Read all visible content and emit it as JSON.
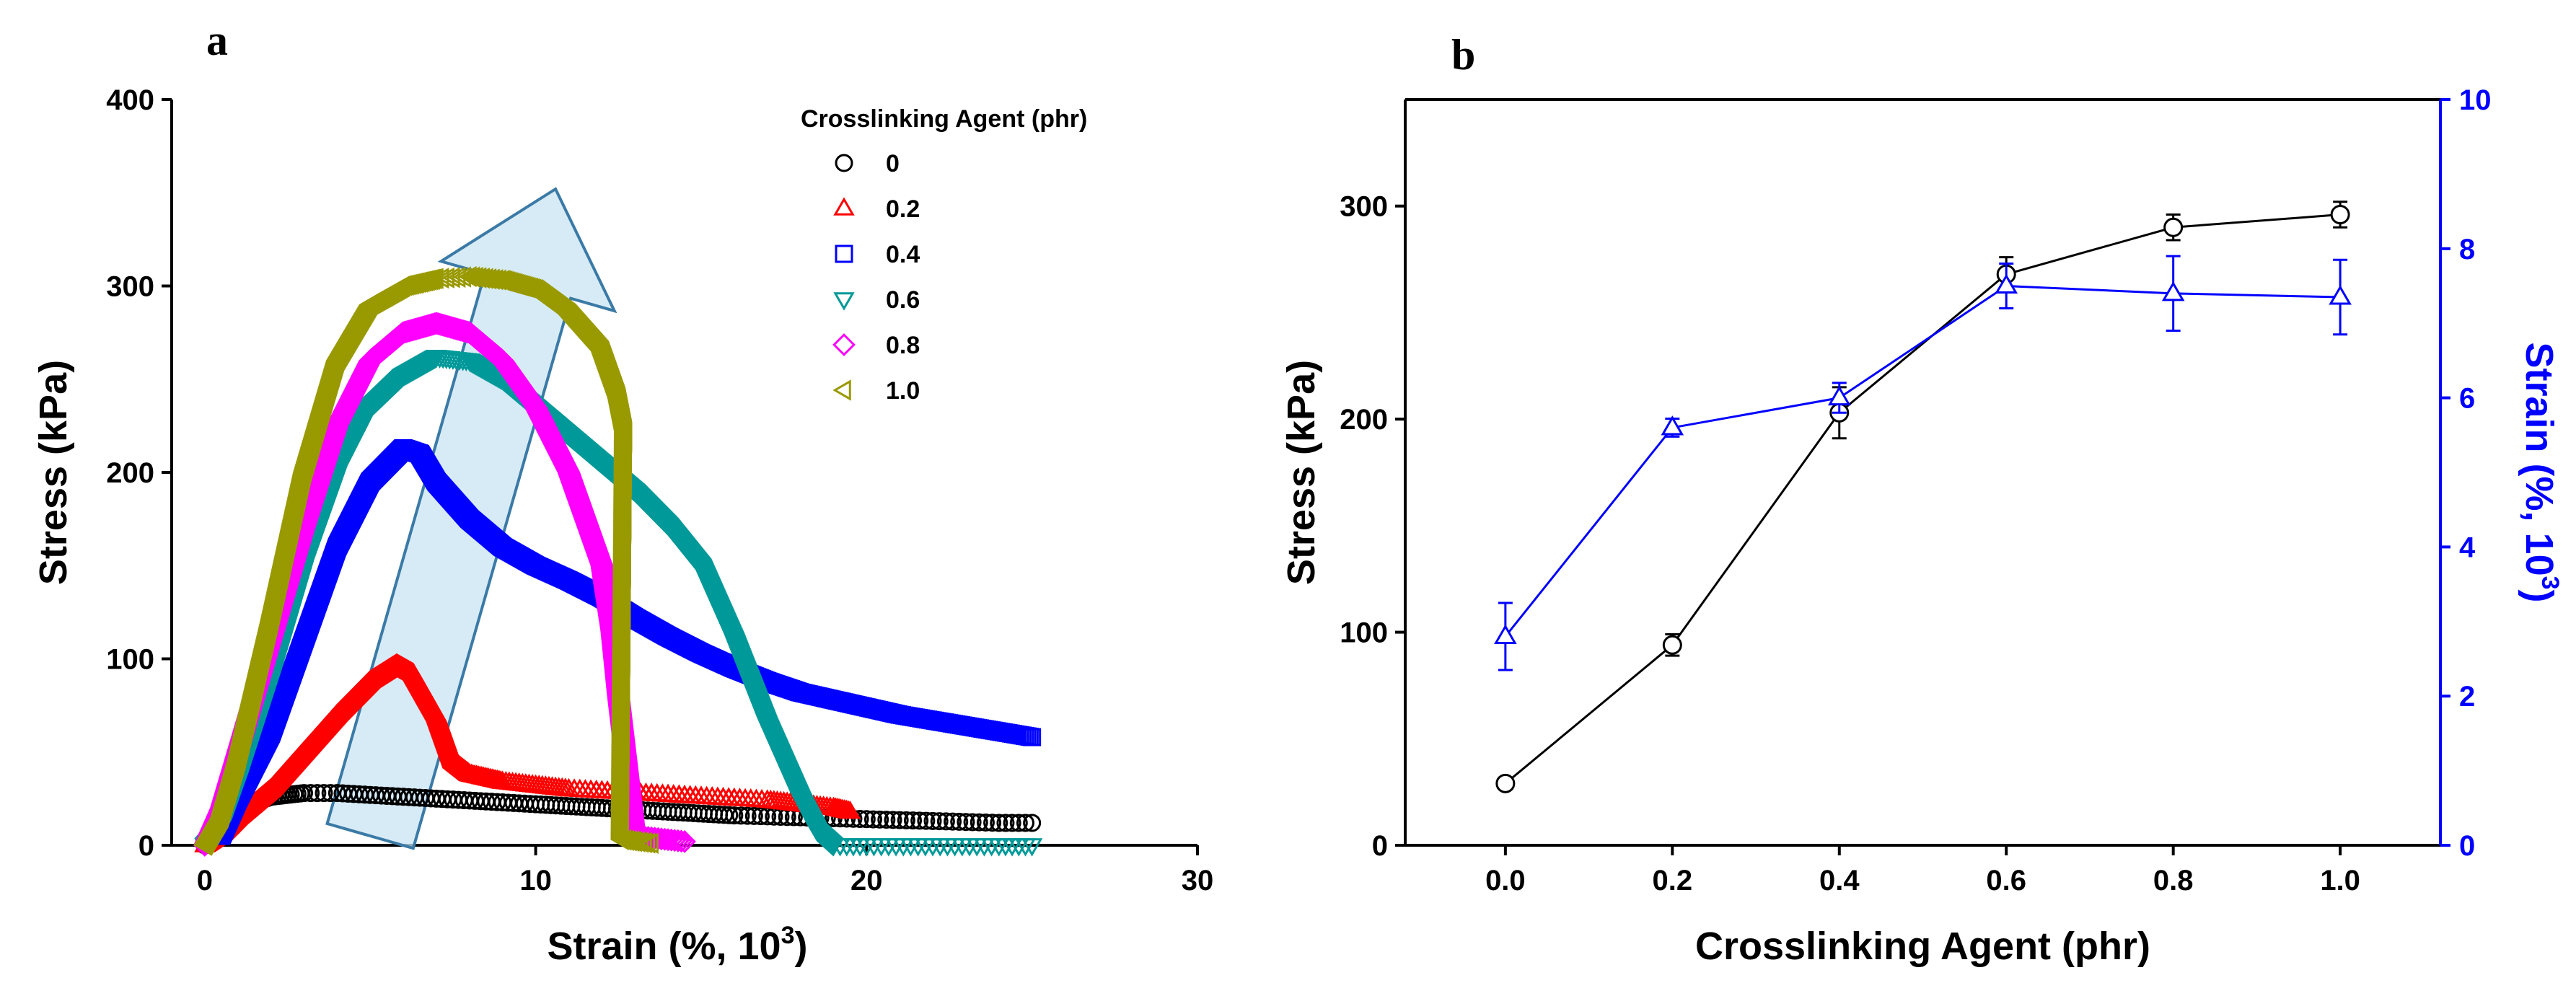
{
  "chart_data": [
    {
      "panel": "a",
      "type": "scatter",
      "xlabel": "Strain (%, 10",
      "xlabel_sup": "3",
      "xlabel_close": ")",
      "ylabel": "Stress (kPa)",
      "xlim": [
        -1,
        30
      ],
      "ylim": [
        0,
        400
      ],
      "xticks": [
        "0",
        "10",
        "20",
        "30"
      ],
      "yticks": [
        "0",
        "100",
        "200",
        "300",
        "400"
      ],
      "legend_title": "Crosslinking Agent (phr)",
      "legend_position": "top-right",
      "annotation": "large translucent blue arrow pointing up-right, indicating increasing stress with crosslinking agent",
      "series": [
        {
          "name": "0",
          "marker": "circle",
          "color": "#000000",
          "points": [
            [
              0,
              0
            ],
            [
              0.5,
              10
            ],
            [
              1,
              18
            ],
            [
              1.5,
              23
            ],
            [
              2,
              26
            ],
            [
              3,
              28
            ],
            [
              4,
              28
            ],
            [
              5,
              27
            ],
            [
              6,
              26
            ],
            [
              7,
              25
            ],
            [
              8,
              24
            ],
            [
              9,
              23
            ],
            [
              10,
              22
            ],
            [
              12,
              20
            ],
            [
              14,
              18
            ],
            [
              16,
              16
            ],
            [
              18,
              15
            ],
            [
              20,
              14
            ],
            [
              22,
              13
            ],
            [
              24,
              12
            ],
            [
              25,
              12
            ]
          ]
        },
        {
          "name": "0.2",
          "marker": "triangle-up",
          "color": "#ff0000",
          "points": [
            [
              0,
              0
            ],
            [
              0.5,
              6
            ],
            [
              1,
              15
            ],
            [
              2,
              30
            ],
            [
              3,
              50
            ],
            [
              4,
              70
            ],
            [
              5,
              88
            ],
            [
              5.8,
              97
            ],
            [
              6.3,
              92
            ],
            [
              7,
              70
            ],
            [
              7.5,
              45
            ],
            [
              8,
              38
            ],
            [
              9,
              34
            ],
            [
              10,
              32
            ],
            [
              11,
              30
            ],
            [
              12,
              29
            ],
            [
              13,
              28
            ],
            [
              14,
              27
            ],
            [
              15,
              26
            ],
            [
              16,
              25
            ],
            [
              17,
              24
            ],
            [
              18,
              22
            ],
            [
              19,
              20
            ],
            [
              19.5,
              18
            ]
          ]
        },
        {
          "name": "0.4",
          "marker": "square",
          "color": "#0000ff",
          "points": [
            [
              0.5,
              5
            ],
            [
              1,
              25
            ],
            [
              2,
              60
            ],
            [
              3,
              110
            ],
            [
              4,
              160
            ],
            [
              5,
              195
            ],
            [
              6,
              213
            ],
            [
              6.5,
              210
            ],
            [
              7,
              195
            ],
            [
              8,
              175
            ],
            [
              9,
              160
            ],
            [
              10,
              150
            ],
            [
              11,
              142
            ],
            [
              12,
              133
            ],
            [
              13,
              122
            ],
            [
              14,
              112
            ],
            [
              15,
              103
            ],
            [
              16,
              95
            ],
            [
              17,
              88
            ],
            [
              18,
              82
            ],
            [
              19,
              78
            ],
            [
              20,
              74
            ],
            [
              21,
              70
            ],
            [
              22,
              67
            ],
            [
              23,
              64
            ],
            [
              24,
              61
            ],
            [
              25,
              58
            ]
          ]
        },
        {
          "name": "0.6",
          "marker": "triangle-down",
          "color": "#009999",
          "points": [
            [
              0,
              0
            ],
            [
              0.5,
              10
            ],
            [
              1,
              35
            ],
            [
              2,
              90
            ],
            [
              3,
              150
            ],
            [
              4,
              200
            ],
            [
              5,
              235
            ],
            [
              6,
              252
            ],
            [
              7,
              262
            ],
            [
              8,
              260
            ],
            [
              9,
              250
            ],
            [
              10,
              235
            ],
            [
              11,
              220
            ],
            [
              12,
              205
            ],
            [
              13,
              190
            ],
            [
              14,
              172
            ],
            [
              15,
              150
            ],
            [
              16,
              110
            ],
            [
              17,
              65
            ],
            [
              18,
              25
            ],
            [
              18.5,
              8
            ],
            [
              19,
              0
            ],
            [
              20,
              0
            ],
            [
              22,
              0
            ],
            [
              24,
              0
            ],
            [
              25,
              0
            ]
          ]
        },
        {
          "name": "0.8",
          "marker": "diamond",
          "color": "#ff00ff",
          "points": [
            [
              0,
              0
            ],
            [
              0.5,
              20
            ],
            [
              1,
              50
            ],
            [
              2,
              110
            ],
            [
              3,
              170
            ],
            [
              4,
              225
            ],
            [
              5,
              260
            ],
            [
              6,
              275
            ],
            [
              7,
              280
            ],
            [
              8,
              275
            ],
            [
              9,
              260
            ],
            [
              10,
              235
            ],
            [
              11,
              200
            ],
            [
              11.5,
              175
            ],
            [
              12,
              150
            ],
            [
              12.3,
              115
            ],
            [
              12.5,
              80
            ],
            [
              13,
              5
            ],
            [
              14,
              3
            ],
            [
              14.5,
              2
            ]
          ]
        },
        {
          "name": "1.0",
          "marker": "triangle-left",
          "color": "#999900",
          "points": [
            [
              0,
              0
            ],
            [
              0.5,
              15
            ],
            [
              1,
              45
            ],
            [
              2,
              120
            ],
            [
              3,
              200
            ],
            [
              4,
              260
            ],
            [
              5,
              290
            ],
            [
              6,
              300
            ],
            [
              7,
              304
            ],
            [
              8,
              305
            ],
            [
              9,
              303
            ],
            [
              10,
              298
            ],
            [
              11,
              285
            ],
            [
              12,
              265
            ],
            [
              12.5,
              240
            ],
            [
              12.7,
              222
            ],
            [
              12.6,
              3
            ],
            [
              13,
              2
            ],
            [
              13.5,
              1
            ]
          ]
        }
      ]
    },
    {
      "panel": "b",
      "type": "line",
      "xlabel": "Crosslinking Agent (phr)",
      "ylabel": "Stress (kPa)",
      "ylabel2": "Strain (%, 10",
      "ylabel2_sup": "3",
      "ylabel2_close": ")",
      "xlim": [
        -0.12,
        1.12
      ],
      "ylim": [
        0,
        350
      ],
      "y2lim": [
        0,
        10
      ],
      "xticks": [
        "0.0",
        "0.2",
        "0.4",
        "0.6",
        "0.8",
        "1.0"
      ],
      "yticks": [
        "0",
        "100",
        "200",
        "300"
      ],
      "y2ticks": [
        "0",
        "2",
        "4",
        "6",
        "8",
        "10"
      ],
      "series": [
        {
          "name": "Stress",
          "axis": "left",
          "marker": "circle",
          "color": "#000000",
          "x": [
            0.0,
            0.2,
            0.4,
            0.6,
            0.8,
            1.0
          ],
          "values": [
            29,
            94,
            203,
            268,
            290,
            296
          ],
          "errors": [
            2,
            5,
            12,
            8,
            6,
            6
          ]
        },
        {
          "name": "Strain",
          "axis": "right",
          "marker": "triangle-up",
          "color": "#0000ff",
          "x": [
            0.0,
            0.2,
            0.4,
            0.6,
            0.8,
            1.0
          ],
          "values": [
            2.8,
            5.6,
            6.0,
            7.5,
            7.4,
            7.35
          ],
          "errors": [
            0.45,
            0.12,
            0.2,
            0.3,
            0.5,
            0.5
          ]
        }
      ]
    }
  ]
}
